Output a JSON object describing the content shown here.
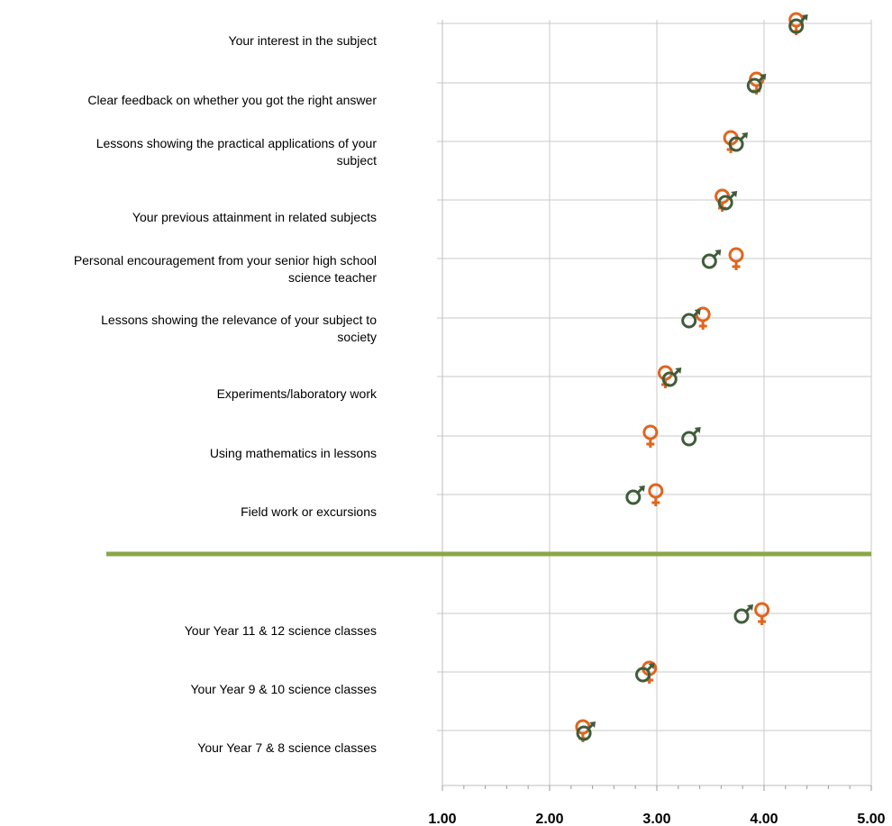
{
  "chart_data": {
    "type": "scatter",
    "title": "",
    "xlabel": "",
    "ylabel": "",
    "xlim": [
      1,
      5
    ],
    "x_ticks": [
      "1.00",
      "2.00",
      "3.00",
      "4.00",
      "5.00"
    ],
    "grid": true,
    "legend": "none",
    "colors": {
      "female": "#e0651e",
      "male": "#3f5c3a",
      "divider": "#8aa64a",
      "grid": "#c8c8c8"
    },
    "series_symbols": {
      "female": "♀",
      "male": "♂"
    },
    "groups": [
      {
        "categories": [
          {
            "lines": [
              "Your interest in the subject"
            ],
            "female": 4.3,
            "male": 4.3
          },
          {
            "lines": [
              "Clear feedback on whether you got the right answer"
            ],
            "female": 3.93,
            "male": 3.91
          },
          {
            "lines": [
              "Lessons showing the practical applications of your",
              "subject"
            ],
            "female": 3.69,
            "male": 3.74
          },
          {
            "lines": [
              "Your previous attainment in related subjects"
            ],
            "female": 3.61,
            "male": 3.64
          },
          {
            "lines": [
              "Personal encouragement from your senior high school",
              "science teacher"
            ],
            "female": 3.74,
            "male": 3.49
          },
          {
            "lines": [
              "Lessons showing the relevance of your subject to",
              "society"
            ],
            "female": 3.43,
            "male": 3.3
          },
          {
            "lines": [
              "Experiments/laboratory work"
            ],
            "female": 3.08,
            "male": 3.12
          },
          {
            "lines": [
              "Using mathematics in lessons"
            ],
            "female": 2.94,
            "male": 3.3
          },
          {
            "lines": [
              "Field work or excursions"
            ],
            "female": 2.99,
            "male": 2.78
          }
        ]
      },
      {
        "categories": [
          {
            "lines": [
              "Your Year 11 & 12 science classes"
            ],
            "female": 3.98,
            "male": 3.79
          },
          {
            "lines": [
              "Your Year 9 & 10 science classes"
            ],
            "female": 2.93,
            "male": 2.87
          },
          {
            "lines": [
              "Your Year 7 & 8 science classes"
            ],
            "female": 2.31,
            "male": 2.32
          }
        ]
      }
    ]
  }
}
